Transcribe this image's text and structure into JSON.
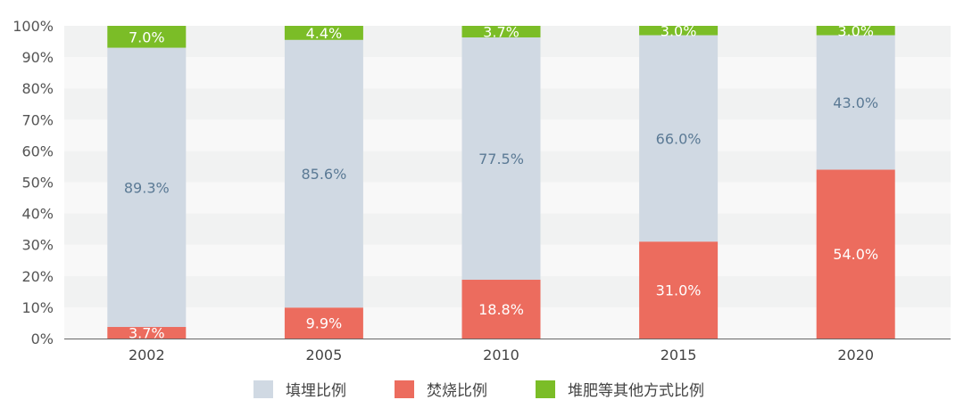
{
  "chart_data": {
    "type": "bar",
    "stacked": true,
    "categories": [
      "2002",
      "2005",
      "2010",
      "2015",
      "2020"
    ],
    "series": [
      {
        "name": "焚烧比例",
        "color": "#ec6c5e",
        "values": [
          3.7,
          9.9,
          18.8,
          31.0,
          54.0
        ],
        "labels": [
          "3.7%",
          "9.9%",
          "18.8%",
          "31.0%",
          "54.0%"
        ],
        "label_color": "#ffffff"
      },
      {
        "name": "填埋比例",
        "color": "#d0d9e3",
        "values": [
          89.3,
          85.6,
          77.5,
          66.0,
          43.0
        ],
        "labels": [
          "89.3%",
          "85.6%",
          "77.5%",
          "66.0%",
          "43.0%"
        ],
        "label_color": "#5b7a95"
      },
      {
        "name": "堆肥等其他方式比例",
        "color": "#7bbd27",
        "values": [
          7.0,
          4.4,
          3.7,
          3.0,
          3.0
        ],
        "labels": [
          "7.0%",
          "4.4%",
          "3.7%",
          "3.0%",
          "3.0%"
        ],
        "label_color": "#ffffff"
      }
    ],
    "yticks": [
      "0%",
      "10%",
      "20%",
      "30%",
      "40%",
      "50%",
      "60%",
      "70%",
      "80%",
      "90%",
      "100%"
    ],
    "ylim": [
      0,
      100
    ],
    "xlabel": "",
    "ylabel": "",
    "grid": "alternating horizontal bands",
    "legend_position": "bottom",
    "legend_order": [
      "填埋比例",
      "焚烧比例",
      "堆肥等其他方式比例"
    ]
  }
}
